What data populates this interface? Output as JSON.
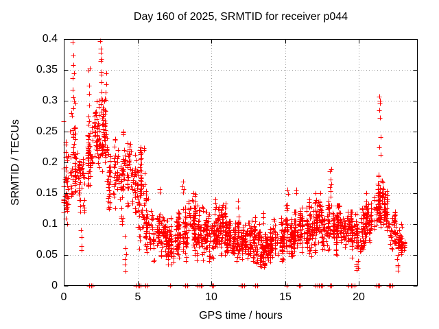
{
  "title": "Day 160 of 2025, SRMTID for receiver p044",
  "x_axis": {
    "label": "GPS time / hours",
    "min": 0,
    "max": 24,
    "ticks": [
      {
        "v": 0,
        "label": "0"
      },
      {
        "v": 5,
        "label": "5"
      },
      {
        "v": 10,
        "label": "10"
      },
      {
        "v": 15,
        "label": "15"
      },
      {
        "v": 20,
        "label": "20"
      }
    ]
  },
  "y_axis": {
    "label": "SRMTID / TECUs",
    "min": 0,
    "max": 0.4,
    "ticks": [
      {
        "v": 0,
        "label": "0"
      },
      {
        "v": 0.05,
        "label": "0.05"
      },
      {
        "v": 0.1,
        "label": "0.1"
      },
      {
        "v": 0.15,
        "label": "0.15"
      },
      {
        "v": 0.2,
        "label": "0.2"
      },
      {
        "v": 0.25,
        "label": "0.25"
      },
      {
        "v": 0.3,
        "label": "0.3"
      },
      {
        "v": 0.35,
        "label": "0.35"
      },
      {
        "v": 0.4,
        "label": "0.4"
      }
    ]
  },
  "colors": {
    "points": "#ff0000",
    "axis": "#000000",
    "grid": "#9a9a9a",
    "background": "#ffffff",
    "text": "#000000"
  },
  "chart_data": {
    "type": "scatter",
    "marker": "plus",
    "series_name": "SRMTID",
    "title": "Day 160 of 2025, SRMTID for receiver p044",
    "xlabel": "GPS time / hours",
    "ylabel": "SRMTID / TECUs",
    "xlim": [
      0,
      24
    ],
    "ylim": [
      0,
      0.4
    ],
    "grid": true,
    "legend": "none",
    "description": "Dense red plus-marker scatter: high noisy values (0.1-0.4 TECUs) during hours 0-5, low band (0.03-0.15) hours 5-21 with small spikes, secondary peak to ~0.31 near hour 21.4, data ends ~hour 23.2; isolated points on the y=0 axis line.",
    "density_bands_columns": [
      "h_start",
      "h_end",
      "count",
      "y_min",
      "y_max"
    ],
    "density_bands": [
      [
        0.0,
        0.5,
        50,
        0.1,
        0.27
      ],
      [
        0.5,
        1.0,
        55,
        0.13,
        0.3
      ],
      [
        1.0,
        1.5,
        45,
        0.12,
        0.22
      ],
      [
        1.5,
        2.0,
        50,
        0.14,
        0.27
      ],
      [
        2.0,
        2.5,
        55,
        0.16,
        0.3
      ],
      [
        2.5,
        3.0,
        55,
        0.16,
        0.32
      ],
      [
        3.0,
        3.5,
        45,
        0.11,
        0.25
      ],
      [
        3.5,
        4.0,
        40,
        0.1,
        0.22
      ],
      [
        4.0,
        4.5,
        48,
        0.11,
        0.25
      ],
      [
        4.5,
        5.0,
        45,
        0.08,
        0.23
      ],
      [
        5.0,
        5.5,
        50,
        0.06,
        0.23
      ],
      [
        5.5,
        6.0,
        45,
        0.05,
        0.16
      ],
      [
        6.0,
        6.5,
        50,
        0.04,
        0.13
      ],
      [
        6.5,
        7.0,
        55,
        0.04,
        0.12
      ],
      [
        7.0,
        7.5,
        55,
        0.035,
        0.11
      ],
      [
        7.5,
        8.0,
        55,
        0.04,
        0.12
      ],
      [
        8.0,
        8.5,
        58,
        0.04,
        0.14
      ],
      [
        8.5,
        9.0,
        60,
        0.045,
        0.15
      ],
      [
        9.0,
        9.5,
        55,
        0.035,
        0.13
      ],
      [
        9.5,
        10.0,
        55,
        0.04,
        0.12
      ],
      [
        10.0,
        10.5,
        60,
        0.045,
        0.135
      ],
      [
        10.5,
        11.0,
        60,
        0.05,
        0.14
      ],
      [
        11.0,
        11.5,
        60,
        0.04,
        0.12
      ],
      [
        11.5,
        12.0,
        60,
        0.04,
        0.12
      ],
      [
        12.0,
        12.5,
        60,
        0.035,
        0.11
      ],
      [
        12.5,
        13.0,
        60,
        0.04,
        0.12
      ],
      [
        13.0,
        13.5,
        55,
        0.03,
        0.1
      ],
      [
        13.5,
        14.0,
        55,
        0.03,
        0.1
      ],
      [
        14.0,
        14.5,
        58,
        0.035,
        0.11
      ],
      [
        14.5,
        15.0,
        58,
        0.04,
        0.11
      ],
      [
        15.0,
        15.5,
        58,
        0.04,
        0.13
      ],
      [
        15.5,
        16.0,
        55,
        0.04,
        0.12
      ],
      [
        16.0,
        16.5,
        58,
        0.05,
        0.13
      ],
      [
        16.5,
        17.0,
        58,
        0.04,
        0.14
      ],
      [
        17.0,
        17.5,
        58,
        0.05,
        0.15
      ],
      [
        17.5,
        18.0,
        58,
        0.05,
        0.14
      ],
      [
        18.0,
        18.5,
        55,
        0.04,
        0.13
      ],
      [
        18.5,
        19.0,
        55,
        0.05,
        0.13
      ],
      [
        19.0,
        19.5,
        55,
        0.05,
        0.12
      ],
      [
        19.5,
        20.0,
        55,
        0.04,
        0.12
      ],
      [
        20.0,
        20.5,
        55,
        0.05,
        0.13
      ],
      [
        20.5,
        21.0,
        55,
        0.07,
        0.15
      ],
      [
        21.0,
        21.5,
        60,
        0.09,
        0.18
      ],
      [
        21.5,
        22.0,
        55,
        0.09,
        0.17
      ],
      [
        22.0,
        22.5,
        45,
        0.05,
        0.13
      ],
      [
        22.5,
        23.0,
        40,
        0.04,
        0.1
      ],
      [
        23.0,
        23.25,
        8,
        0.05,
        0.09
      ]
    ],
    "spikes_columns": [
      "h_center",
      "count",
      "y_min",
      "y_max"
    ],
    "spikes": [
      [
        0.65,
        8,
        0.28,
        0.375
      ],
      [
        1.2,
        4,
        0.05,
        0.09
      ],
      [
        1.7,
        8,
        0.22,
        0.35
      ],
      [
        2.55,
        10,
        0.27,
        0.375
      ],
      [
        2.85,
        7,
        0.24,
        0.33
      ],
      [
        4.2,
        6,
        0.015,
        0.08
      ],
      [
        5.25,
        8,
        0.15,
        0.23
      ],
      [
        6.5,
        2,
        0.15,
        0.16
      ],
      [
        8.1,
        4,
        0.15,
        0.17
      ],
      [
        8.9,
        5,
        0.12,
        0.155
      ],
      [
        10.3,
        4,
        0.12,
        0.145
      ],
      [
        11.8,
        3,
        0.11,
        0.14
      ],
      [
        13.5,
        3,
        0.1,
        0.12
      ],
      [
        15.2,
        4,
        0.12,
        0.16
      ],
      [
        15.75,
        2,
        0.15,
        0.16
      ],
      [
        17.25,
        4,
        0.11,
        0.14
      ],
      [
        18.1,
        8,
        0.13,
        0.195
      ],
      [
        19.9,
        5,
        0.025,
        0.04
      ],
      [
        22.65,
        5,
        0.02,
        0.05
      ]
    ],
    "outliers_xy": [
      [
        0.6,
        0.394
      ],
      [
        2.47,
        0.397
      ],
      [
        2.49,
        0.385
      ],
      [
        2.5,
        0.378
      ],
      [
        1.75,
        0.352
      ],
      [
        2.9,
        0.345
      ],
      [
        21.4,
        0.307
      ],
      [
        21.42,
        0.3
      ],
      [
        21.44,
        0.296
      ],
      [
        21.4,
        0.285
      ],
      [
        21.43,
        0.272
      ],
      [
        21.47,
        0.241
      ],
      [
        21.38,
        0.225
      ],
      [
        21.5,
        0.212
      ]
    ],
    "zero_value_markers_columns": [
      "h_center",
      "point_count"
    ],
    "zero_value_markers": [
      [
        1.85,
        3
      ],
      [
        5.0,
        3
      ],
      [
        5.15,
        2
      ],
      [
        5.6,
        2
      ],
      [
        7.2,
        1
      ],
      [
        8.3,
        2
      ],
      [
        9.2,
        3
      ],
      [
        9.35,
        1
      ],
      [
        10.1,
        2
      ],
      [
        12.1,
        3
      ],
      [
        13.05,
        2
      ],
      [
        15.1,
        1
      ],
      [
        16.0,
        2
      ],
      [
        17.2,
        3
      ],
      [
        17.5,
        2
      ],
      [
        18.1,
        2
      ],
      [
        19.3,
        1
      ],
      [
        19.6,
        3
      ],
      [
        21.25,
        2
      ],
      [
        21.4,
        1
      ],
      [
        22.1,
        2
      ],
      [
        22.3,
        1
      ]
    ]
  }
}
